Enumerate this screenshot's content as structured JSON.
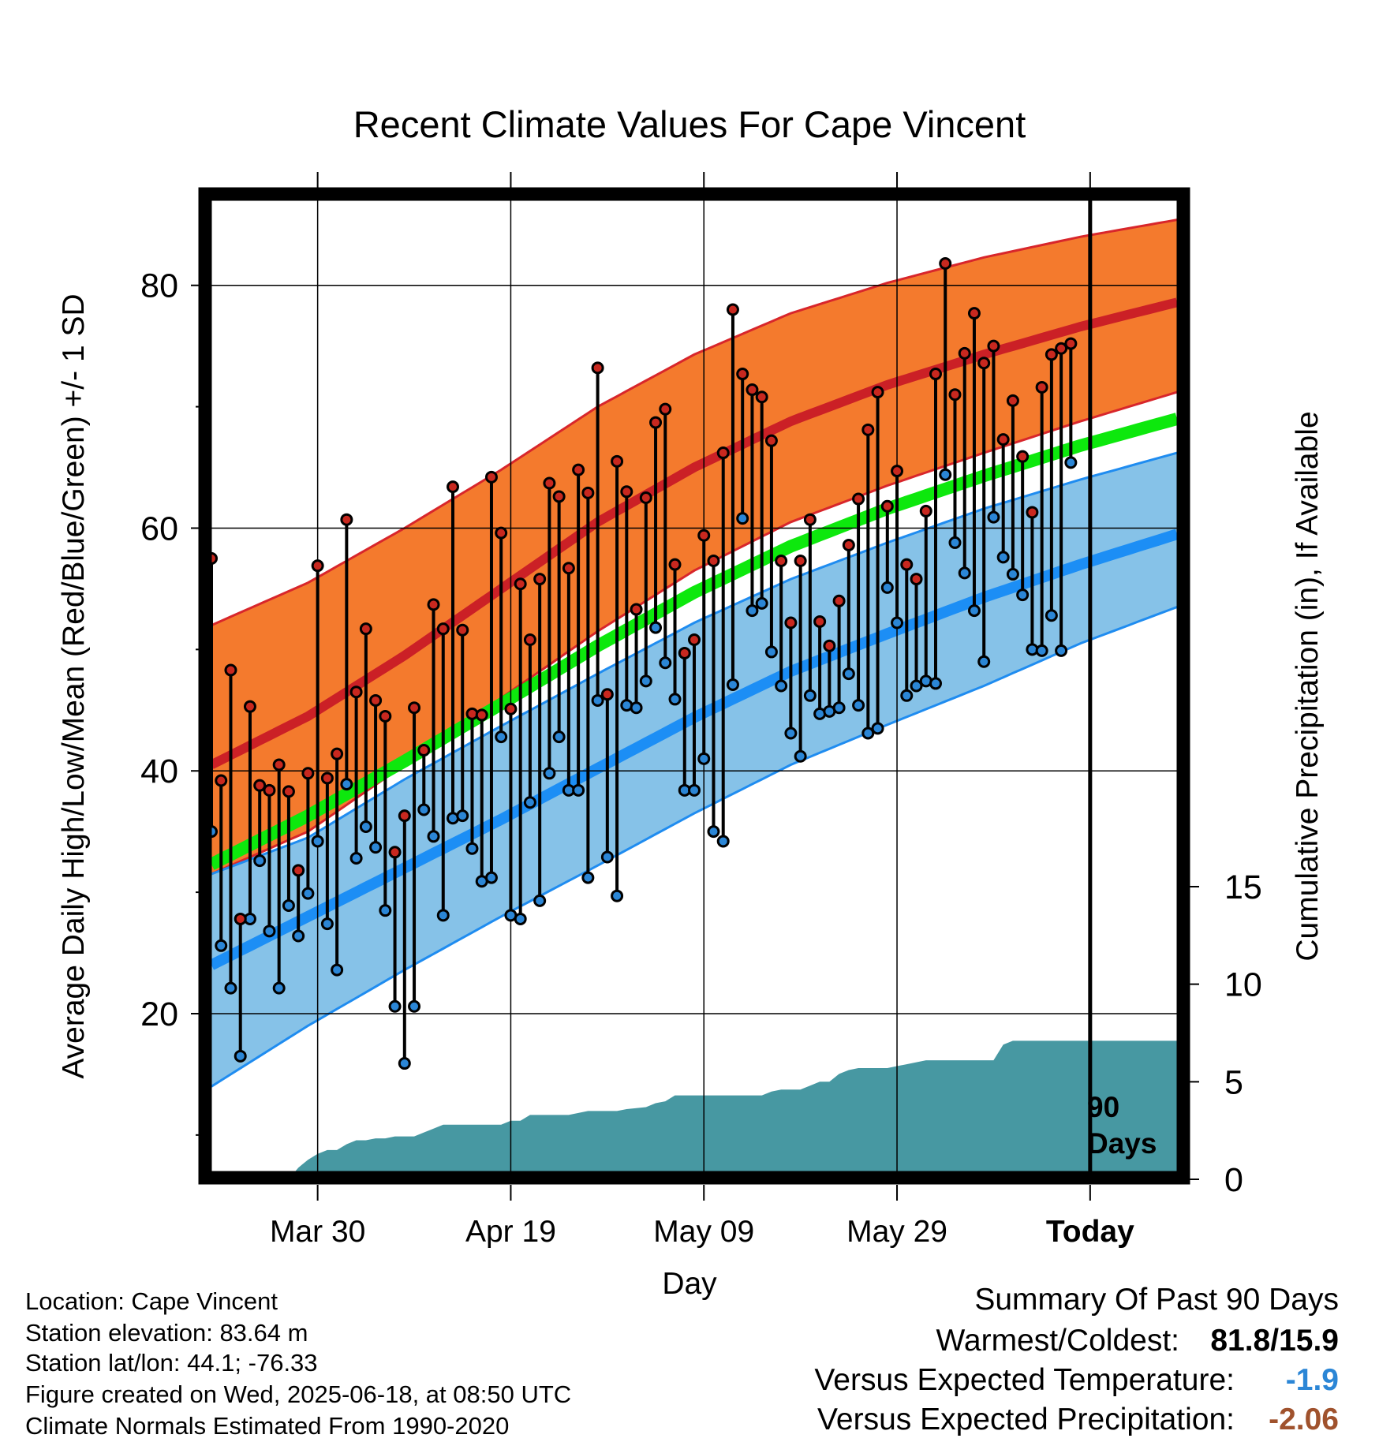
{
  "chart_data": {
    "type": "line",
    "title": "Recent Climate Values For Cape Vincent",
    "xlabel": "Day",
    "ylabel_left": "Average Daily High/Low/Mean (Red/Blue/Green) +/- 1 SD",
    "ylabel_right": "Cumulative Precipitation (in), If Available",
    "x_ticks": [
      {
        "day": 11,
        "label": "Mar 30"
      },
      {
        "day": 31,
        "label": "Apr 19"
      },
      {
        "day": 51,
        "label": "May 09"
      },
      {
        "day": 71,
        "label": "May 29"
      },
      {
        "day": 91,
        "label": "Today"
      }
    ],
    "xlim": [
      0,
      100
    ],
    "today_day": 91,
    "today_label": [
      "90",
      "Days"
    ],
    "ylim_left": [
      7,
      87
    ],
    "y_ticks_left": [
      20,
      40,
      60,
      80
    ],
    "y_minor_left": [
      10,
      30,
      50,
      70
    ],
    "ylim_right": [
      0,
      15
    ],
    "y_ticks_right": [
      0,
      5,
      10,
      15
    ],
    "colors": {
      "high_band": "#f47a2d",
      "high_edge": "#d8262b",
      "high_mean": "#cb2026",
      "low_band": "#86c2e8",
      "low_edge": "#1f8cf0",
      "low_mean": "#1c8ef5",
      "mean_line": "#0de80d",
      "precip": "#4798a2",
      "point_high": "#c8281f",
      "point_low": "#2b86d6",
      "neg_temp": "#2b86d6",
      "neg_precip": "#a0522d"
    },
    "normals": {
      "high_mean": [
        [
          0,
          40.5
        ],
        [
          10,
          44.5
        ],
        [
          20,
          49.5
        ],
        [
          30,
          55
        ],
        [
          40,
          60.5
        ],
        [
          50,
          65
        ],
        [
          60,
          68.8
        ],
        [
          70,
          71.8
        ],
        [
          80,
          74.3
        ],
        [
          90,
          76.6
        ],
        [
          100,
          78.6
        ]
      ],
      "high_sd_upper": [
        [
          0,
          52
        ],
        [
          10,
          55.5
        ],
        [
          20,
          60
        ],
        [
          30,
          64.8
        ],
        [
          40,
          70
        ],
        [
          50,
          74.3
        ],
        [
          60,
          77.7
        ],
        [
          70,
          80.2
        ],
        [
          80,
          82.3
        ],
        [
          90,
          84
        ],
        [
          100,
          85.4
        ]
      ],
      "high_sd_lower": [
        [
          0,
          31.5
        ],
        [
          10,
          35
        ],
        [
          20,
          40.5
        ],
        [
          30,
          46
        ],
        [
          40,
          51.5
        ],
        [
          50,
          56.5
        ],
        [
          60,
          60.5
        ],
        [
          70,
          63.5
        ],
        [
          80,
          66.2
        ],
        [
          90,
          68.8
        ],
        [
          100,
          71.2
        ]
      ],
      "low_mean": [
        [
          0,
          24
        ],
        [
          10,
          28
        ],
        [
          20,
          32
        ],
        [
          30,
          36
        ],
        [
          40,
          40.2
        ],
        [
          50,
          44.4
        ],
        [
          60,
          48.2
        ],
        [
          70,
          51.3
        ],
        [
          80,
          54.3
        ],
        [
          90,
          57
        ],
        [
          100,
          59.5
        ]
      ],
      "low_sd_upper": [
        [
          0,
          31.5
        ],
        [
          10,
          34.5
        ],
        [
          20,
          39.3
        ],
        [
          30,
          43.7
        ],
        [
          40,
          48
        ],
        [
          50,
          52.2
        ],
        [
          60,
          55.8
        ],
        [
          70,
          58.8
        ],
        [
          80,
          61.6
        ],
        [
          90,
          64
        ],
        [
          100,
          66.2
        ]
      ],
      "low_sd_lower": [
        [
          0,
          14
        ],
        [
          10,
          19
        ],
        [
          20,
          23.6
        ],
        [
          30,
          28
        ],
        [
          40,
          32.2
        ],
        [
          50,
          36.5
        ],
        [
          60,
          40.5
        ],
        [
          70,
          43.8
        ],
        [
          80,
          47
        ],
        [
          90,
          50.5
        ],
        [
          100,
          53.5
        ]
      ],
      "daily_mean": [
        [
          0,
          32.3
        ],
        [
          10,
          36.3
        ],
        [
          20,
          40.8
        ],
        [
          30,
          45.5
        ],
        [
          40,
          50.3
        ],
        [
          50,
          54.7
        ],
        [
          60,
          58.5
        ],
        [
          70,
          61.6
        ],
        [
          80,
          64.3
        ],
        [
          90,
          66.8
        ],
        [
          100,
          69
        ]
      ]
    },
    "daily_high": [
      57.5,
      39.2,
      48.3,
      27.8,
      45.3,
      38.8,
      38.4,
      40.5,
      38.3,
      31.8,
      39.8,
      56.9,
      39.4,
      41.4,
      60.7,
      46.5,
      51.7,
      45.8,
      44.5,
      33.3,
      36.3,
      45.2,
      41.7,
      53.7,
      51.7,
      63.4,
      51.6,
      44.7,
      44.6,
      64.2,
      59.6,
      45.1,
      55.4,
      50.8,
      55.8,
      63.7,
      62.6,
      56.7,
      64.8,
      62.9,
      73.2,
      46.3,
      65.5,
      63,
      53.3,
      62.5,
      68.7,
      69.8,
      57,
      49.7,
      50.8,
      59.4,
      57.3,
      66.2,
      78,
      72.7,
      71.4,
      70.8,
      67.2,
      57.3,
      52.2,
      57.3,
      60.7,
      52.3,
      50.3,
      54,
      58.6,
      62.4,
      68.1,
      71.2,
      61.8,
      64.7,
      57,
      55.8,
      61.4,
      72.7,
      81.8,
      71,
      74.4,
      77.7,
      73.6,
      75,
      67.3,
      70.5,
      65.9,
      61.3,
      71.6,
      74.3,
      74.8,
      75.2
    ],
    "daily_low": [
      35,
      25.6,
      22.1,
      16.5,
      27.8,
      32.6,
      26.8,
      22.1,
      28.9,
      26.4,
      29.9,
      34.2,
      27.4,
      23.6,
      38.9,
      32.8,
      35.4,
      33.7,
      28.5,
      20.6,
      15.9,
      20.6,
      36.8,
      34.6,
      28.1,
      36.1,
      36.3,
      33.6,
      30.9,
      31.2,
      42.8,
      28.1,
      27.8,
      37.4,
      29.3,
      39.8,
      42.8,
      38.4,
      38.4,
      31.2,
      45.8,
      32.9,
      29.7,
      45.4,
      45.2,
      47.4,
      51.8,
      48.9,
      45.9,
      38.4,
      38.4,
      41,
      35,
      34.2,
      47.1,
      60.8,
      53.2,
      53.8,
      49.8,
      47,
      43.1,
      41.2,
      46.2,
      44.7,
      44.9,
      45.2,
      48,
      45.4,
      43.1,
      43.5,
      55.1,
      52.2,
      46.2,
      47,
      47.4,
      47.2,
      64.4,
      58.8,
      56.3,
      53.2,
      49,
      60.9,
      57.6,
      56.2,
      54.5,
      50,
      49.9,
      52.8,
      49.9,
      65.4
    ],
    "precip_cumulative": [
      [
        0,
        0.05
      ],
      [
        7,
        0.05
      ],
      [
        8,
        0.1
      ],
      [
        8.5,
        0.3
      ],
      [
        9,
        0.6
      ],
      [
        10,
        1
      ],
      [
        11,
        1.3
      ],
      [
        12,
        1.5
      ],
      [
        13,
        1.5
      ],
      [
        14,
        1.8
      ],
      [
        15,
        2
      ],
      [
        16,
        2
      ],
      [
        17,
        2.1
      ],
      [
        18,
        2.1
      ],
      [
        19,
        2.2
      ],
      [
        21,
        2.2
      ],
      [
        22,
        2.4
      ],
      [
        23,
        2.6
      ],
      [
        24,
        2.8
      ],
      [
        30,
        2.8
      ],
      [
        31,
        3
      ],
      [
        32,
        3
      ],
      [
        33,
        3.3
      ],
      [
        37,
        3.3
      ],
      [
        38,
        3.4
      ],
      [
        39,
        3.5
      ],
      [
        42,
        3.5
      ],
      [
        43,
        3.6
      ],
      [
        45,
        3.7
      ],
      [
        46,
        3.9
      ],
      [
        47,
        4
      ],
      [
        48,
        4.3
      ],
      [
        50,
        4.3
      ],
      [
        51,
        4.3
      ],
      [
        57,
        4.3
      ],
      [
        58,
        4.5
      ],
      [
        59,
        4.6
      ],
      [
        61,
        4.6
      ],
      [
        62,
        4.8
      ],
      [
        63,
        5
      ],
      [
        64,
        5
      ],
      [
        65,
        5.4
      ],
      [
        66,
        5.6
      ],
      [
        67,
        5.7
      ],
      [
        70,
        5.7
      ],
      [
        71,
        5.8
      ],
      [
        72,
        5.9
      ],
      [
        73,
        6
      ],
      [
        74,
        6.1
      ],
      [
        81,
        6.1
      ],
      [
        82,
        6.9
      ],
      [
        83,
        7.1
      ],
      [
        100,
        7.1
      ]
    ],
    "summary": {
      "heading": "Summary Of Past 90 Days",
      "warmest_coldest_label": "Warmest/Coldest:",
      "warmest_coldest_value": "81.8/15.9",
      "temp_label": "Versus Expected Temperature:",
      "temp_value": "-1.9",
      "precip_label": "Versus Expected Precipitation:",
      "precip_value": "-2.06"
    },
    "station_info": [
      "Location: Cape Vincent",
      "Station elevation: 83.64 m",
      "Station lat/lon: 44.1; -76.33",
      "Figure created on Wed, 2025-06-18, at 08:50 UTC",
      "Climate Normals Estimated From 1990-2020"
    ]
  }
}
